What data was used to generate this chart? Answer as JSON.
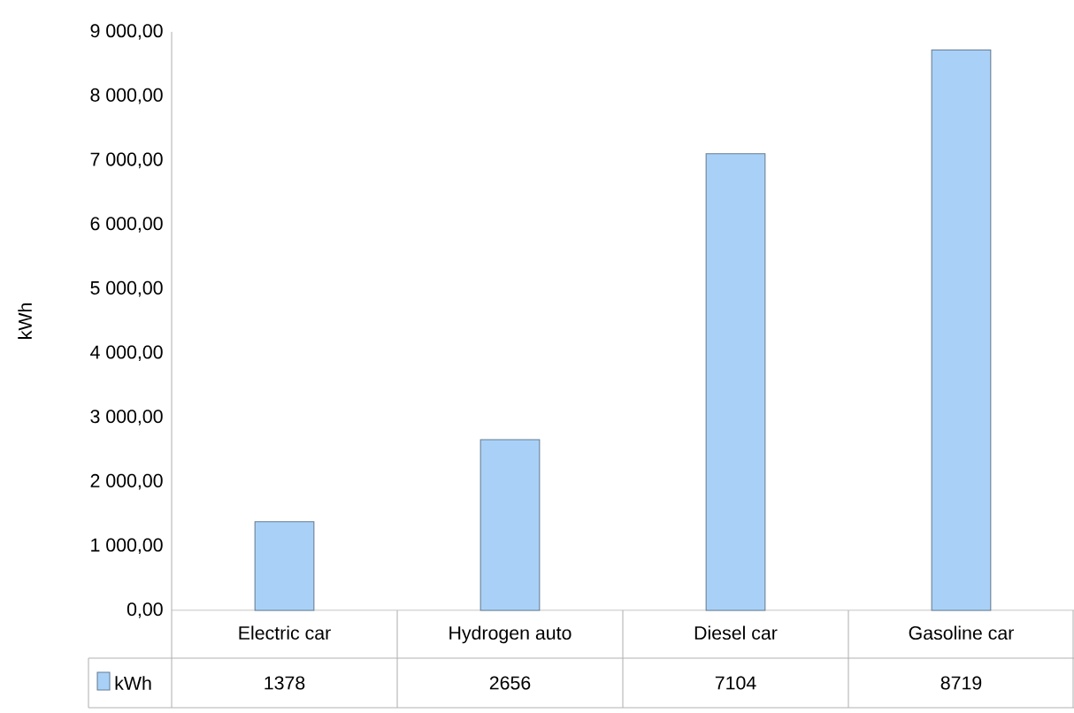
{
  "chart_data": {
    "type": "bar",
    "ylabel": "kWh",
    "categories": [
      "Electric car",
      "Hydrogen auto",
      "Diesel car",
      "Gasoline car"
    ],
    "series": [
      {
        "name": "kWh",
        "color": "#a9d1f7",
        "values": [
          1378,
          2656,
          7104,
          8719
        ]
      }
    ],
    "ylim": [
      0,
      9000
    ],
    "yticks": [
      {
        "value": 0,
        "label": "0,00"
      },
      {
        "value": 1000,
        "label": "1 000,00"
      },
      {
        "value": 2000,
        "label": "2 000,00"
      },
      {
        "value": 3000,
        "label": "3 000,00"
      },
      {
        "value": 4000,
        "label": "4 000,00"
      },
      {
        "value": 5000,
        "label": "5 000,00"
      },
      {
        "value": 6000,
        "label": "6 000,00"
      },
      {
        "value": 7000,
        "label": "7 000,00"
      },
      {
        "value": 8000,
        "label": "8 000,00"
      },
      {
        "value": 9000,
        "label": "9 000,00"
      }
    ],
    "data_labels": true,
    "legend": "bottom left"
  }
}
